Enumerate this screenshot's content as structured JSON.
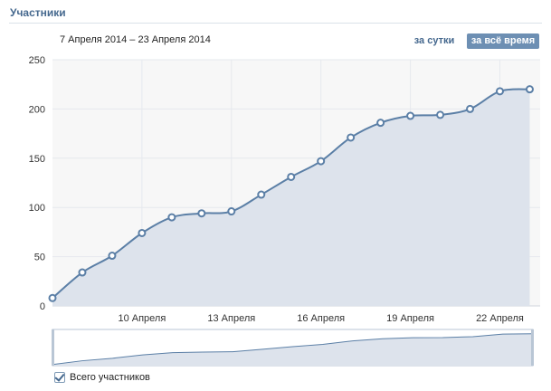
{
  "section": {
    "title": "Участники"
  },
  "header": {
    "date_range": "7 Апреля 2014 – 23 Апреля 2014"
  },
  "tabs": [
    {
      "label": "за сутки",
      "active": false
    },
    {
      "label": "за всё время",
      "active": true
    }
  ],
  "legend": {
    "label": "Всего участников",
    "checked": true
  },
  "colors": {
    "line": "#5b7fa6",
    "area": "#dde3ec",
    "grid": "#e6e9ee",
    "plot_bg": "#f7f7f7",
    "active_tab": "#6d8fb3",
    "link": "#45688e"
  },
  "chart_data": {
    "type": "area",
    "title": "",
    "xlabel": "",
    "ylabel": "",
    "x": [
      "2014-04-07",
      "2014-04-08",
      "2014-04-09",
      "2014-04-10",
      "2014-04-11",
      "2014-04-12",
      "2014-04-13",
      "2014-04-14",
      "2014-04-15",
      "2014-04-16",
      "2014-04-17",
      "2014-04-18",
      "2014-04-19",
      "2014-04-20",
      "2014-04-21",
      "2014-04-22",
      "2014-04-23"
    ],
    "series": [
      {
        "values": [
          8,
          34,
          51,
          74,
          90,
          94,
          96,
          113,
          131,
          147,
          171,
          186,
          193,
          194,
          200,
          218,
          220
        ]
      }
    ],
    "x_tick_labels": [
      "10 Апреля",
      "13 Апреля",
      "16 Апреля",
      "19 Апреля",
      "22 Апреля"
    ],
    "x_tick_dates": [
      "2014-04-10",
      "2014-04-13",
      "2014-04-16",
      "2014-04-19",
      "2014-04-22"
    ],
    "y_ticks": [
      0,
      50,
      100,
      150,
      200,
      250
    ],
    "ylim": [
      0,
      250
    ],
    "grid": true
  }
}
